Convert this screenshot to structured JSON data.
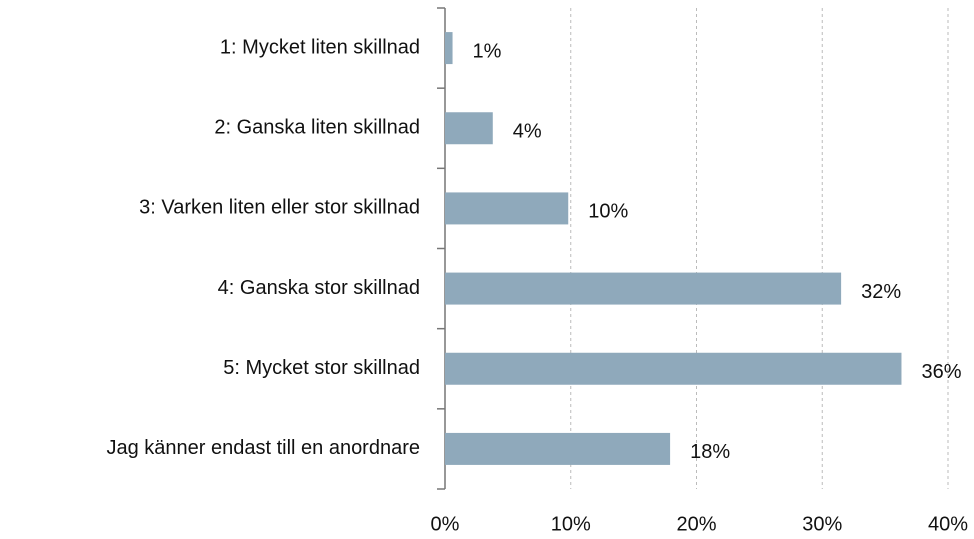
{
  "chart_data": {
    "type": "bar",
    "orientation": "horizontal",
    "categories": [
      "1: Mycket liten skillnad",
      "2: Ganska liten skillnad",
      "3: Varken liten eller stor skillnad",
      "4: Ganska stor skillnad",
      "5: Mycket stor skillnad",
      "Jag känner endast till en anordnare"
    ],
    "values": [
      0.6,
      3.8,
      9.8,
      31.5,
      36.3,
      17.9
    ],
    "value_labels": [
      "1%",
      "4%",
      "10%",
      "32%",
      "36%",
      "18%"
    ],
    "color": "#8fa9bb",
    "xlim": [
      0,
      40
    ],
    "xticks": [
      {
        "value": 0,
        "label": "0%"
      },
      {
        "value": 10,
        "label": "10%"
      },
      {
        "value": 20,
        "label": "20%"
      },
      {
        "value": 30,
        "label": "30%"
      },
      {
        "value": 40,
        "label": "40%"
      }
    ],
    "grid": true
  }
}
